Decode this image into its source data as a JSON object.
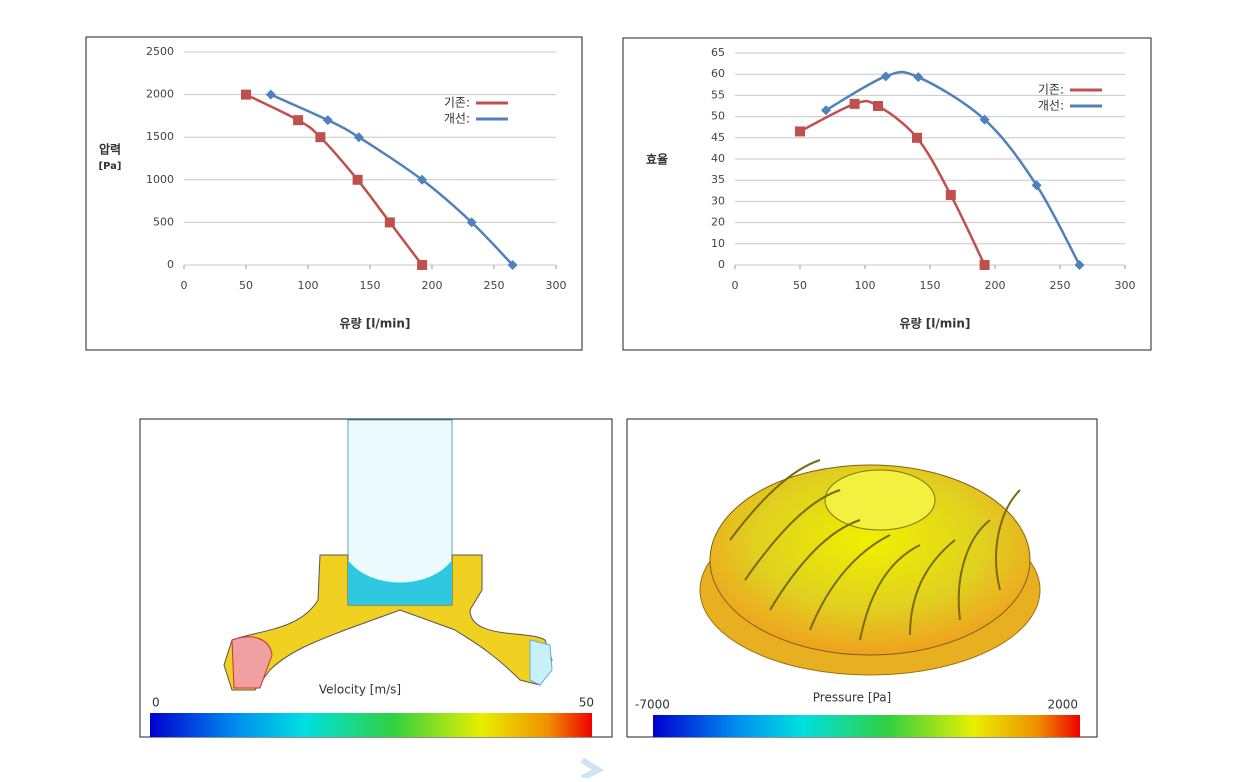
{
  "chart_data": [
    {
      "type": "line",
      "ylabel": [
        "압력",
        "[Pa]"
      ],
      "xlabel": "유량 [l/min]",
      "xlim": [
        0,
        300
      ],
      "xticks": [
        0,
        50,
        100,
        150,
        200,
        250,
        300
      ],
      "ylim": [
        0,
        2500
      ],
      "yticks": [
        0,
        500,
        1000,
        1500,
        2000,
        2500
      ],
      "grid": true,
      "legend": "upper right",
      "series": [
        {
          "name": "기존:",
          "color": "#c0504d",
          "marker": "square",
          "x": [
            50,
            92,
            110,
            140,
            166,
            192
          ],
          "values": [
            2000,
            1700,
            1500,
            1000,
            500,
            0
          ]
        },
        {
          "name": "개선:",
          "color": "#4f81bd",
          "marker": "diamond",
          "x": [
            70,
            116,
            141,
            192,
            232,
            265
          ],
          "values": [
            2000,
            1700,
            1500,
            1000,
            500,
            0
          ]
        }
      ]
    },
    {
      "type": "line",
      "ylabel": [
        "효율"
      ],
      "xlabel": "유량 [l/min]",
      "xlim": [
        0,
        300
      ],
      "xticks": [
        0,
        50,
        100,
        150,
        200,
        250,
        300
      ],
      "ylim": [
        0,
        65
      ],
      "yticks": [
        0,
        10,
        20,
        30,
        35,
        40,
        45,
        50,
        55,
        60,
        65
      ],
      "grid": true,
      "legend": "upper right",
      "series": [
        {
          "name": "기존:",
          "color": "#c0504d",
          "marker": "square",
          "x": [
            50,
            92,
            110,
            140,
            166,
            192
          ],
          "values": [
            46.5,
            53,
            52.5,
            45,
            31.5,
            0
          ]
        },
        {
          "name": "개선:",
          "color": "#4f81bd",
          "marker": "diamond",
          "x": [
            70,
            116,
            141,
            192,
            232,
            265
          ],
          "values": [
            51.5,
            59.5,
            59.3,
            49.3,
            33.8,
            0
          ]
        }
      ]
    }
  ],
  "contour_panels": [
    {
      "label": "Velocity [m/s]",
      "range": [
        0,
        50
      ]
    },
    {
      "label": "Pressure [Pa]",
      "range": [
        -7000,
        2000
      ]
    }
  ]
}
